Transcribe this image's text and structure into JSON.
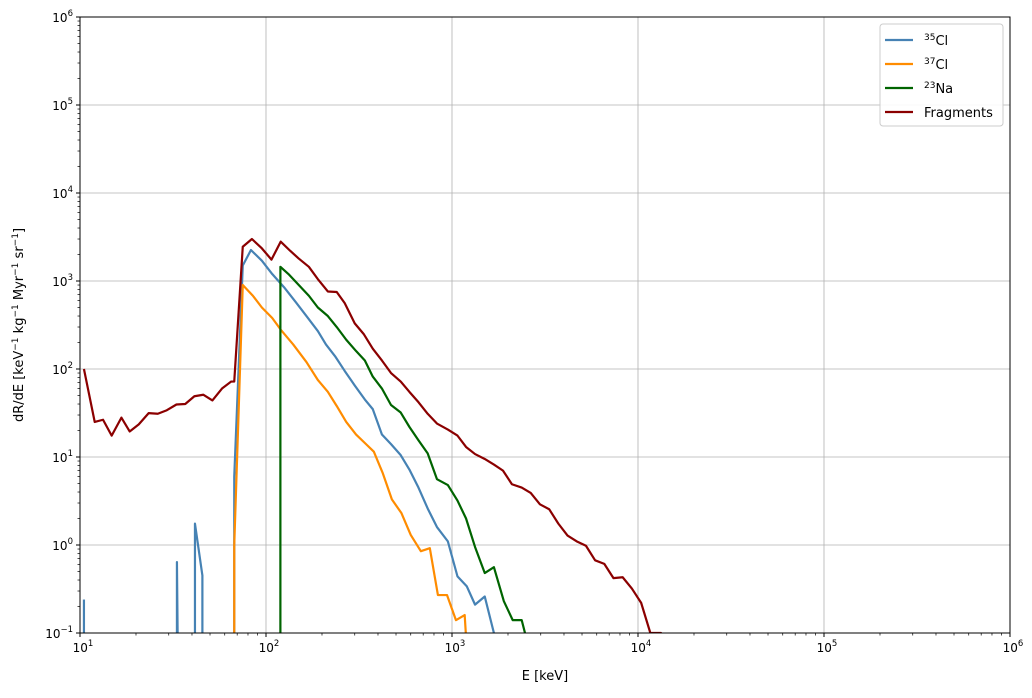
{
  "chart_data": {
    "type": "line",
    "title": "",
    "xlabel": "E [keV]",
    "ylabel": {
      "base": "dR/dE [keV",
      "u1": "−1",
      "mid1": " kg",
      "u2": "−1",
      "mid2": " Myr",
      "u3": "−1",
      "mid3": " sr",
      "u4": "−1",
      "end": "]"
    },
    "xscale": "log",
    "yscale": "log",
    "xlim": [
      10,
      1000000
    ],
    "ylim": [
      0.1,
      1000000
    ],
    "grid": true,
    "legend_position": "top-right",
    "x_ticks": [
      {
        "value": 10,
        "base": "10",
        "exp": "1"
      },
      {
        "value": 100,
        "base": "10",
        "exp": "2"
      },
      {
        "value": 1000,
        "base": "10",
        "exp": "3"
      },
      {
        "value": 10000,
        "base": "10",
        "exp": "4"
      },
      {
        "value": 100000,
        "base": "10",
        "exp": "5"
      },
      {
        "value": 1000000,
        "base": "10",
        "exp": "6"
      }
    ],
    "y_ticks": [
      {
        "value": 0.1,
        "base": "10",
        "exp": "−1"
      },
      {
        "value": 1,
        "base": "10",
        "exp": "0"
      },
      {
        "value": 10,
        "base": "10",
        "exp": "1"
      },
      {
        "value": 100,
        "base": "10",
        "exp": "2"
      },
      {
        "value": 1000,
        "base": "10",
        "exp": "3"
      },
      {
        "value": 10000,
        "base": "10",
        "exp": "4"
      },
      {
        "value": 100000,
        "base": "10",
        "exp": "5"
      },
      {
        "value": 1000000,
        "base": "10",
        "exp": "6"
      }
    ],
    "series": [
      {
        "name": "Cl",
        "name_sup": "35",
        "color": "#4682b4",
        "segments": [
          [
            [
              10.5,
              0.24
            ],
            [
              10.5,
              0.09
            ]
          ],
          [
            [
              33.2,
              0.09
            ],
            [
              33.2,
              0.64
            ],
            [
              33.5,
              0.09
            ]
          ],
          [
            [
              41.5,
              0.09
            ],
            [
              41.5,
              1.75
            ],
            [
              45.5,
              0.45
            ],
            [
              45.5,
              0.09
            ]
          ],
          [
            [
              67.5,
              0.09
            ],
            [
              67.5,
              6.0
            ],
            [
              75,
              1500
            ],
            [
              83,
              2250
            ],
            [
              95,
              1700
            ],
            [
              108,
              1200
            ],
            [
              125,
              850
            ],
            [
              145,
              570
            ],
            [
              165,
              400
            ],
            [
              190,
              270
            ],
            [
              210,
              190
            ],
            [
              235,
              140
            ],
            [
              265,
              95
            ],
            [
              300,
              65
            ],
            [
              340,
              45
            ],
            [
              375,
              35
            ],
            [
              420,
              18
            ],
            [
              470,
              14
            ],
            [
              530,
              10.5
            ],
            [
              590,
              7.2
            ],
            [
              660,
              4.5
            ],
            [
              740,
              2.6
            ],
            [
              830,
              1.6
            ],
            [
              950,
              1.1
            ],
            [
              1070,
              0.44
            ],
            [
              1200,
              0.34
            ],
            [
              1330,
              0.21
            ],
            [
              1500,
              0.26
            ],
            [
              1680,
              0.1
            ],
            [
              1700,
              0.09
            ]
          ]
        ]
      },
      {
        "name": "Cl",
        "name_sup": "37",
        "color": "#ff8c00",
        "segments": [
          [
            [
              67.5,
              0.09
            ],
            [
              67.5,
              1.0
            ],
            [
              75,
              900
            ],
            [
              85,
              680
            ],
            [
              95,
              500
            ],
            [
              108,
              380
            ],
            [
              120,
              280
            ],
            [
              140,
              190
            ],
            [
              165,
              120
            ],
            [
              190,
              75
            ],
            [
              215,
              55
            ],
            [
              240,
              38
            ],
            [
              270,
              25
            ],
            [
              305,
              18
            ],
            [
              345,
              14
            ],
            [
              380,
              11.5
            ],
            [
              425,
              6.5
            ],
            [
              475,
              3.3
            ],
            [
              535,
              2.3
            ],
            [
              600,
              1.3
            ],
            [
              680,
              0.85
            ],
            [
              760,
              0.92
            ],
            [
              840,
              0.27
            ],
            [
              940,
              0.27
            ],
            [
              1050,
              0.14
            ],
            [
              1170,
              0.16
            ],
            [
              1190,
              0.09
            ]
          ]
        ]
      },
      {
        "name": "Na",
        "name_sup": "23",
        "color": "#006400",
        "segments": [
          [
            [
              119.5,
              0.09
            ],
            [
              119.5,
              1450
            ],
            [
              132,
              1200
            ],
            [
              150,
              900
            ],
            [
              170,
              680
            ],
            [
              190,
              500
            ],
            [
              215,
              400
            ],
            [
              240,
              300
            ],
            [
              270,
              215
            ],
            [
              305,
              160
            ],
            [
              340,
              125
            ],
            [
              375,
              82
            ],
            [
              420,
              60
            ],
            [
              470,
              39
            ],
            [
              530,
              32
            ],
            [
              590,
              22
            ],
            [
              660,
              15.5
            ],
            [
              740,
              11
            ],
            [
              830,
              5.6
            ],
            [
              950,
              4.8
            ],
            [
              1070,
              3.2
            ],
            [
              1190,
              2.0
            ],
            [
              1330,
              0.95
            ],
            [
              1500,
              0.48
            ],
            [
              1680,
              0.56
            ],
            [
              1900,
              0.23
            ],
            [
              2120,
              0.14
            ],
            [
              2370,
              0.14
            ],
            [
              2500,
              0.09
            ]
          ]
        ]
      },
      {
        "name": "Fragments",
        "name_sup": "",
        "color": "#8b0000",
        "segments": [
          [
            [
              10.5,
              100
            ],
            [
              12.0,
              25
            ],
            [
              13.3,
              26.5
            ],
            [
              14.8,
              17.5
            ],
            [
              16.7,
              28
            ],
            [
              18.5,
              19.5
            ],
            [
              20.7,
              23.5
            ],
            [
              23.4,
              31.5
            ],
            [
              26.2,
              31
            ],
            [
              29.3,
              34
            ],
            [
              33,
              39.5
            ],
            [
              36.8,
              40
            ],
            [
              41.2,
              49
            ],
            [
              46,
              51
            ],
            [
              51.5,
              44
            ],
            [
              58,
              60
            ],
            [
              65,
              72
            ],
            [
              67.5,
              72
            ],
            [
              75,
              2450
            ],
            [
              84,
              3000
            ],
            [
              95,
              2350
            ],
            [
              107,
              1750
            ],
            [
              120,
              2800
            ],
            [
              135,
              2200
            ],
            [
              150,
              1800
            ],
            [
              170,
              1450
            ],
            [
              190,
              1050
            ],
            [
              215,
              760
            ],
            [
              240,
              750
            ],
            [
              265,
              560
            ],
            [
              300,
              330
            ],
            [
              335,
              250
            ],
            [
              375,
              170
            ],
            [
              420,
              125
            ],
            [
              470,
              90
            ],
            [
              530,
              72
            ],
            [
              590,
              55
            ],
            [
              660,
              42
            ],
            [
              740,
              31
            ],
            [
              830,
              24
            ],
            [
              950,
              20.5
            ],
            [
              1070,
              17.5
            ],
            [
              1190,
              13
            ],
            [
              1330,
              10.8
            ],
            [
              1500,
              9.5
            ],
            [
              1680,
              8.2
            ],
            [
              1880,
              7.0
            ],
            [
              2100,
              4.9
            ],
            [
              2370,
              4.5
            ],
            [
              2650,
              3.9
            ],
            [
              2970,
              2.9
            ],
            [
              3330,
              2.55
            ],
            [
              3730,
              1.75
            ],
            [
              4180,
              1.28
            ],
            [
              4680,
              1.1
            ],
            [
              5250,
              0.98
            ],
            [
              5880,
              0.67
            ],
            [
              6590,
              0.61
            ],
            [
              7380,
              0.42
            ],
            [
              8270,
              0.43
            ],
            [
              9270,
              0.32
            ],
            [
              10400,
              0.22
            ],
            [
              11650,
              0.1
            ],
            [
              13300,
              0.1
            ],
            [
              13500,
              0.09
            ]
          ]
        ]
      }
    ]
  }
}
